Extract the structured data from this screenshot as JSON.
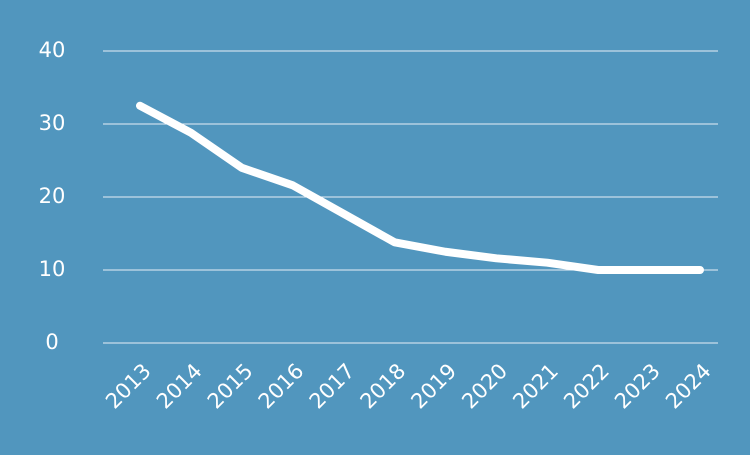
{
  "chart_data": {
    "type": "line",
    "categories": [
      "2013",
      "2014",
      "2015",
      "2016",
      "2017",
      "2018",
      "2019",
      "2020",
      "2021",
      "2022",
      "2023",
      "2024"
    ],
    "series": [
      {
        "color": "#ffffff",
        "values": [
          32.5,
          28.8,
          24,
          21.6,
          17.7,
          13.8,
          12.5,
          11.6,
          11,
          10,
          10,
          10
        ]
      }
    ],
    "ylim": [
      0,
      40
    ],
    "yticks": [
      0,
      10,
      20,
      30,
      40
    ],
    "grid": true
  }
}
